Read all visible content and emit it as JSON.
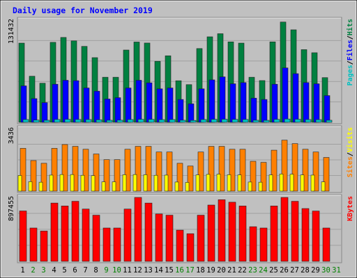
{
  "chart_data": {
    "type": "bar",
    "title": "Daily usage for November 2019",
    "categories": [
      "1",
      "2",
      "3",
      "4",
      "5",
      "6",
      "7",
      "8",
      "9",
      "10",
      "11",
      "12",
      "13",
      "14",
      "15",
      "16",
      "17",
      "18",
      "19",
      "20",
      "21",
      "22",
      "23",
      "24",
      "25",
      "26",
      "27",
      "28",
      "29",
      "30",
      "31"
    ],
    "weekend_days": [
      "2",
      "3",
      "9",
      "10",
      "16",
      "17",
      "23",
      "24",
      "30",
      "31"
    ],
    "panels": [
      {
        "id": "hits-panel",
        "ymax_label": "131432",
        "ymax": 131432,
        "ylabel_parts": [
          "Pages",
          "/",
          "Files",
          "/",
          "Hits"
        ],
        "ylabel_colors": [
          "#00C0C0",
          "#000000",
          "#0000FF",
          "#000000",
          "#008040"
        ],
        "series": [
          {
            "name": "Hits",
            "color": "#008040",
            "values": [
              101900,
              59300,
              50300,
              102900,
              109200,
              104800,
              97700,
              83200,
              58000,
              58000,
              93000,
              103300,
              102000,
              78500,
              85600,
              53500,
              48500,
              94900,
              110000,
              114000,
              103500,
              101900,
              58000,
              53700,
              103500,
              129000,
              119000,
              93500,
              89500,
              57500,
              0
            ]
          },
          {
            "name": "Files",
            "color": "#0000FF",
            "values": [
              46900,
              30500,
              25400,
              49000,
              54100,
              53600,
              44200,
              40100,
              30000,
              31700,
              44200,
              54100,
              50800,
              43100,
              44200,
              29400,
              23800,
              43100,
              54600,
              58500,
              49600,
              51100,
              31100,
              29400,
              49000,
              70000,
              62600,
              51100,
              49600,
              34400,
              0
            ]
          },
          {
            "name": "Pages",
            "color": "#00C0C0",
            "values": [
              3600,
              2900,
              2700,
              3700,
              3900,
              3700,
              3600,
              3300,
              2700,
              2800,
              3600,
              3900,
              3800,
              3500,
              3600,
              2700,
              2500,
              3600,
              3900,
              4000,
              3800,
              3700,
              2700,
              2600,
              3800,
              4300,
              4000,
              3600,
              3500,
              2700,
              0
            ]
          }
        ]
      },
      {
        "id": "visits-panel",
        "ymax_label": "3436",
        "ymax": 3436,
        "ylabel_parts": [
          "Sites",
          "/",
          "Visits"
        ],
        "ylabel_colors": [
          "#FF8000",
          "#000000",
          "#FFFF00"
        ],
        "series": [
          {
            "name": "Visits",
            "color": "#FF8000",
            "values": [
              2350,
              1680,
              1530,
              2350,
              2560,
              2460,
              2300,
              2040,
              1730,
              1730,
              2300,
              2460,
              2460,
              2150,
              2150,
              1530,
              1380,
              2150,
              2460,
              2460,
              2300,
              2300,
              1640,
              1580,
              2250,
              2800,
              2610,
              2300,
              2150,
              1850,
              0
            ]
          },
          {
            "name": "Sites",
            "color": "#FFFF00",
            "values": [
              860,
              520,
              490,
              880,
              910,
              910,
              870,
              850,
              510,
              510,
              900,
              910,
              900,
              870,
              880,
              500,
              480,
              890,
              920,
              930,
              900,
              890,
              500,
              490,
              890,
              940,
              930,
              890,
              880,
              510,
              0
            ]
          }
        ]
      },
      {
        "id": "kbytes-panel",
        "ymax_label": "897455",
        "ymax": 897455,
        "ylabel_parts": [
          "KBytes"
        ],
        "ylabel_colors": [
          "#FF0000"
        ],
        "series": [
          {
            "name": "KBytes",
            "color": "#FF0000",
            "values": [
              707000,
              468000,
              425000,
              818000,
              777000,
              843000,
              734000,
              648000,
              468000,
              468000,
              734000,
              897000,
              818000,
              665000,
              648000,
              438000,
              388000,
              648000,
              790000,
              865000,
              830000,
              777000,
              486000,
              468000,
              777000,
              897000,
              843000,
              741000,
              706000,
              468000,
              0
            ]
          }
        ]
      }
    ]
  }
}
